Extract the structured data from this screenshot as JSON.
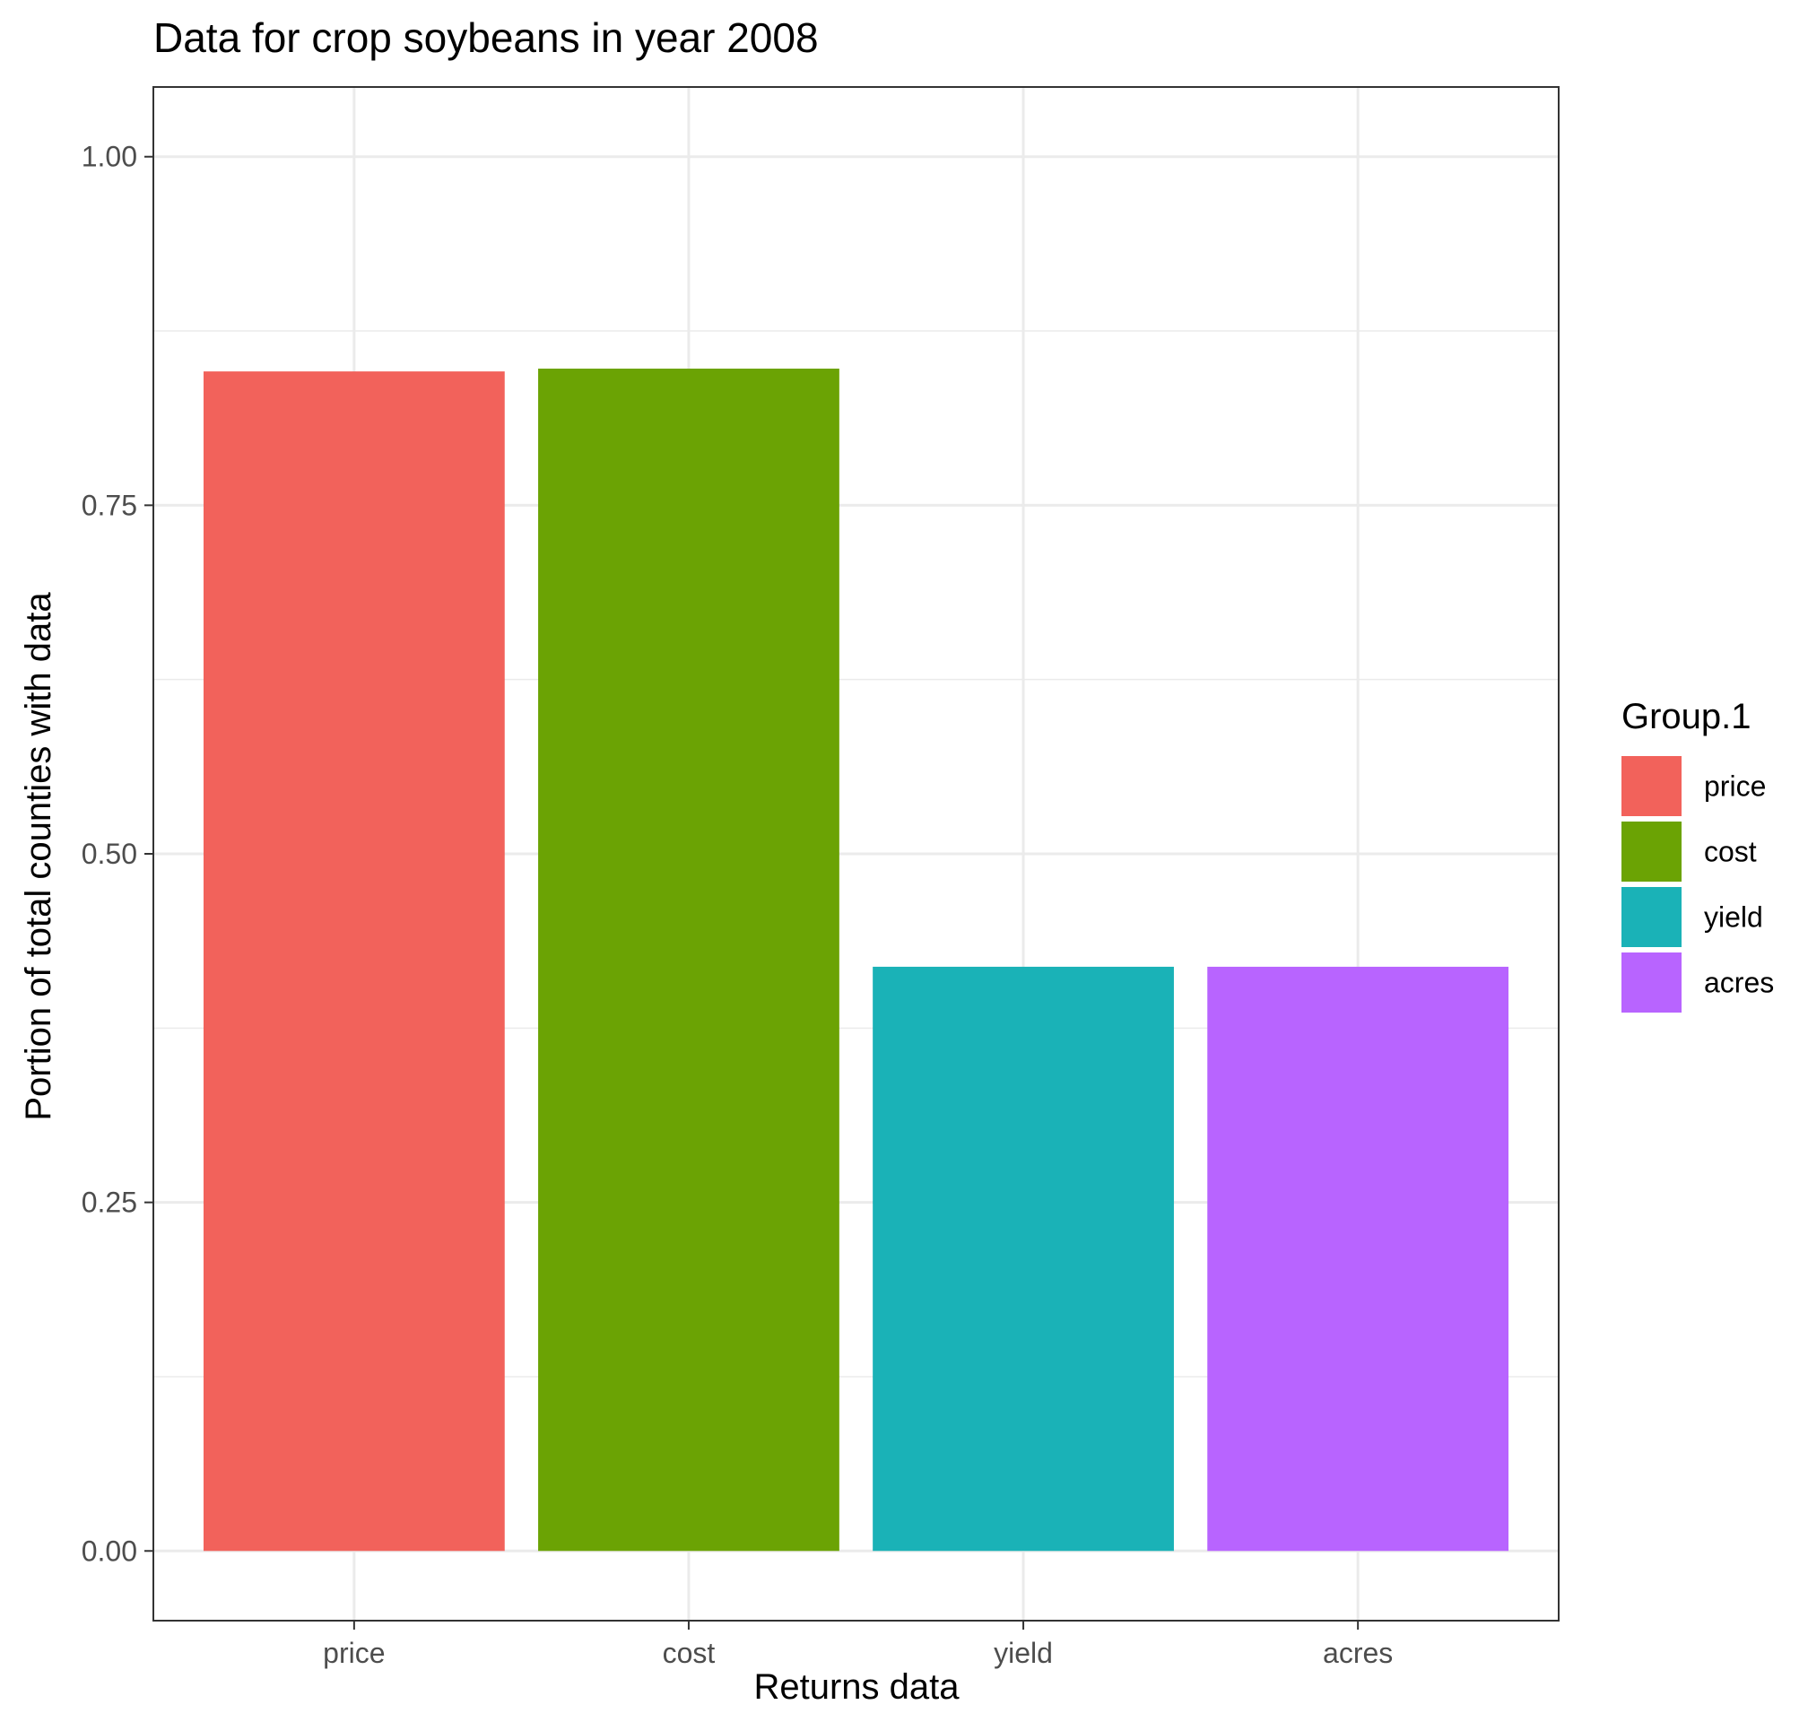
{
  "chart_data": {
    "type": "bar",
    "title": "Data for crop soybeans in year 2008",
    "xlabel": "Returns data",
    "ylabel": "Portion of total counties with data",
    "categories": [
      "price",
      "cost",
      "yield",
      "acres"
    ],
    "values": [
      0.846,
      0.848,
      0.419,
      0.419
    ],
    "colors": [
      "#F8766D",
      "#7CAE00",
      "#00BFC4",
      "#C77CFF"
    ],
    "bar_colors_rendered": [
      "#F2625B",
      "#6BA304",
      "#1AB2B7",
      "#B864FF"
    ],
    "ylim": [
      -0.05,
      1.05
    ],
    "y_ticks": [
      0.0,
      0.25,
      0.5,
      0.75,
      1.0
    ],
    "y_tick_labels": [
      "0.00",
      "0.25",
      "0.50",
      "0.75",
      "1.00"
    ],
    "grid": true,
    "theme": "bw",
    "legend": {
      "title": "Group.1",
      "position": "right",
      "items": [
        "price",
        "cost",
        "yield",
        "acres"
      ]
    }
  }
}
